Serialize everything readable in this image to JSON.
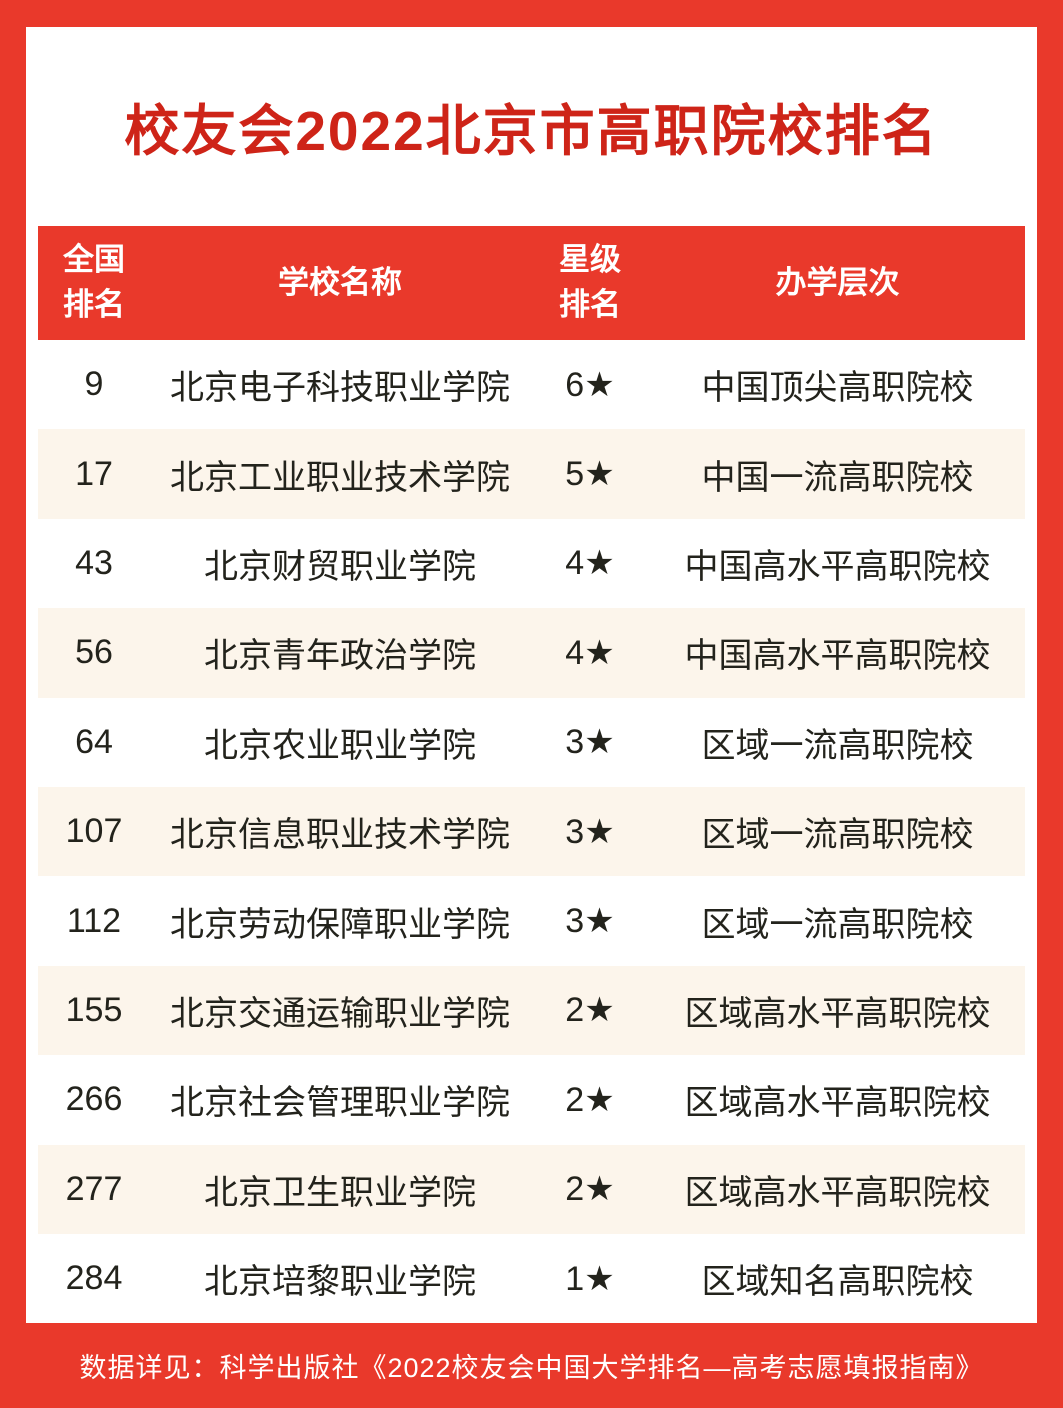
{
  "title": "校友会2022北京市高职院校排名",
  "colors": {
    "frame_red": "#e9392b",
    "title_red": "#ce2418",
    "header_bg": "#e9392b",
    "header_text": "#ffffff",
    "alt_row_bg": "#fcf5eb",
    "row_text": "#23231c",
    "footer_bg": "#e9392b",
    "footer_text": "#ffffff"
  },
  "table": {
    "headers": {
      "rank_line1": "全国",
      "rank_line2": "排名",
      "school": "学校名称",
      "stars_line1": "星级",
      "stars_line2": "排名",
      "level": "办学层次"
    },
    "rows": [
      {
        "rank": "9",
        "school": "北京电子科技职业学院",
        "stars": "6★",
        "level": "中国顶尖高职院校"
      },
      {
        "rank": "17",
        "school": "北京工业职业技术学院",
        "stars": "5★",
        "level": "中国一流高职院校"
      },
      {
        "rank": "43",
        "school": "北京财贸职业学院",
        "stars": "4★",
        "level": "中国高水平高职院校"
      },
      {
        "rank": "56",
        "school": "北京青年政治学院",
        "stars": "4★",
        "level": "中国高水平高职院校"
      },
      {
        "rank": "64",
        "school": "北京农业职业学院",
        "stars": "3★",
        "level": "区域一流高职院校"
      },
      {
        "rank": "107",
        "school": "北京信息职业技术学院",
        "stars": "3★",
        "level": "区域一流高职院校"
      },
      {
        "rank": "112",
        "school": "北京劳动保障职业学院",
        "stars": "3★",
        "level": "区域一流高职院校"
      },
      {
        "rank": "155",
        "school": "北京交通运输职业学院",
        "stars": "2★",
        "level": "区域高水平高职院校"
      },
      {
        "rank": "266",
        "school": "北京社会管理职业学院",
        "stars": "2★",
        "level": "区域高水平高职院校"
      },
      {
        "rank": "277",
        "school": "北京卫生职业学院",
        "stars": "2★",
        "level": "区域高水平高职院校"
      },
      {
        "rank": "284",
        "school": "北京培黎职业学院",
        "stars": "1★",
        "level": "区域知名高职院校"
      }
    ]
  },
  "footer": {
    "text": "数据详见：科学出版社《2022校友会中国大学排名—高考志愿填报指南》"
  }
}
